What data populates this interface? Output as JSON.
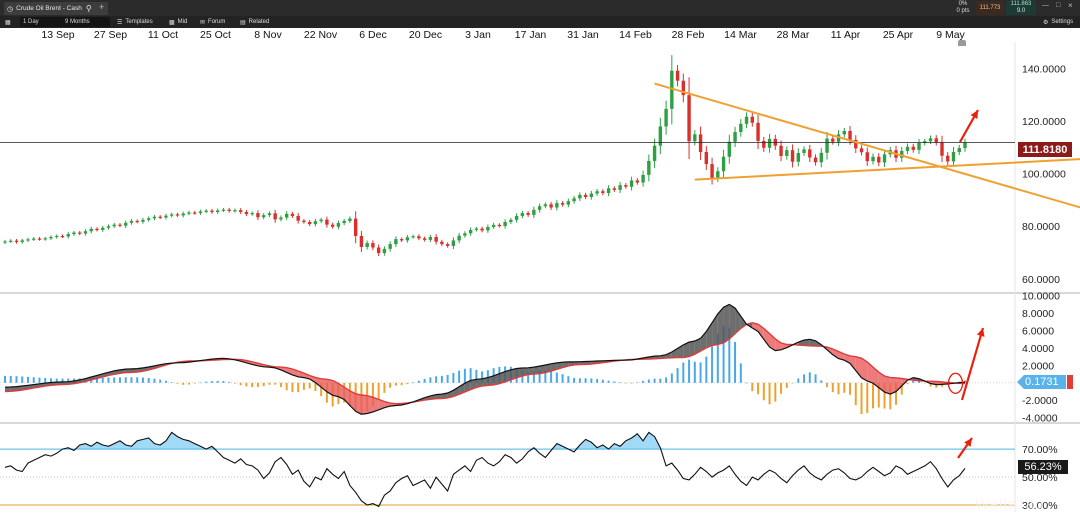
{
  "window": {
    "instrument": "Crude Oil Brent - Cash",
    "sell_price": "111.773",
    "buy_price": "111.863",
    "spread": "9.0",
    "change_pct": "0%",
    "change_pts": "0 pts"
  },
  "toolbar": {
    "interval": "1 Day",
    "range": "9 Months",
    "templates": "Templates",
    "mid": "Mid",
    "forum": "Forum",
    "related": "Related",
    "settings": "Settings"
  },
  "date_axis": [
    "13 Sep",
    "27 Sep",
    "11 Oct",
    "25 Oct",
    "8 Nov",
    "22 Nov",
    "6 Dec",
    "20 Dec",
    "3 Jan",
    "17 Jan",
    "31 Jan",
    "14 Feb",
    "28 Feb",
    "14 Mar",
    "28 Mar",
    "11 Apr",
    "25 Apr",
    "9 May"
  ],
  "price_labels": {
    "current_price": "111.8180",
    "macd_value": "0.1731",
    "rsi_value": "56.23%"
  },
  "watermark": "Wallazau",
  "colors": {
    "up": "#2ea043",
    "down": "#d9302c",
    "signal": "#e03c3c",
    "trendline": "#f0a030",
    "rsi_fill": "#8fd3f5",
    "hist_pos": "#4aa8e8",
    "hist_neg": "#f0a030",
    "annotation": "#e8210f"
  },
  "chart_data": [
    {
      "type": "candlestick",
      "name": "Price",
      "ylim": [
        55,
        150
      ],
      "yticks": [
        60,
        80,
        100,
        120,
        140
      ],
      "ytick_labels": [
        "60.0000",
        "80.0000",
        "100.0000",
        "120.0000",
        "140.0000"
      ],
      "current_price": 111.818,
      "close": [
        74.2,
        74.5,
        74.0,
        74.6,
        75.0,
        75.3,
        75.1,
        75.4,
        75.9,
        76.3,
        76.1,
        77.0,
        77.6,
        77.2,
        78.1,
        79.0,
        78.6,
        79.4,
        80.0,
        80.6,
        80.2,
        81.3,
        82.0,
        81.7,
        82.4,
        83.0,
        83.6,
        83.3,
        84.0,
        84.5,
        84.1,
        84.8,
        85.2,
        85.0,
        85.6,
        85.9,
        85.4,
        86.0,
        86.3,
        85.8,
        86.1,
        85.4,
        84.6,
        85.0,
        83.4,
        84.2,
        84.9,
        82.6,
        83.3,
        84.7,
        83.9,
        82.1,
        81.6,
        80.8,
        81.9,
        82.5,
        80.6,
        79.8,
        81.2,
        82.0,
        82.9,
        76.3,
        72.1,
        73.6,
        71.9,
        69.8,
        71.4,
        73.2,
        75.1,
        74.6,
        75.8,
        76.2,
        75.4,
        74.8,
        75.9,
        74.1,
        73.2,
        72.5,
        74.6,
        76.4,
        77.3,
        78.6,
        79.1,
        78.4,
        79.7,
        80.5,
        80.1,
        81.6,
        82.4,
        83.9,
        85.0,
        84.3,
        86.2,
        87.6,
        88.3,
        87.1,
        88.8,
        88.2,
        89.5,
        90.6,
        91.9,
        91.1,
        92.4,
        93.3,
        92.6,
        94.4,
        93.8,
        95.6,
        95.0,
        97.4,
        96.6,
        99.5,
        104.8,
        110.6,
        117.9,
        124.6,
        139.1,
        135.3,
        129.8,
        112.3,
        114.9,
        108.2,
        103.6,
        98.3,
        100.9,
        106.4,
        112.1,
        115.8,
        118.9,
        121.6,
        119.3,
        112.4,
        109.8,
        113.2,
        110.6,
        106.7,
        108.9,
        104.5,
        107.8,
        109.2,
        106.1,
        104.3,
        107.9,
        113.3,
        112.1,
        114.9,
        116.2,
        112.8,
        109.6,
        108.1,
        104.7,
        106.4,
        104.2,
        107.3,
        108.9,
        106.0,
        108.6,
        110.2,
        109.0,
        111.6,
        112.3,
        113.4,
        111.9,
        106.8,
        104.6,
        108.2,
        109.7,
        111.818
      ],
      "trendlines": [
        {
          "points": [
            [
              113,
              134.2
            ],
            [
              169,
              98.6
            ]
          ]
        },
        {
          "points": [
            [
              120,
              97.7
            ],
            [
              169,
              103.4
            ]
          ]
        }
      ]
    },
    {
      "type": "macd",
      "name": "MACD",
      "ylim": [
        -4.5,
        10.2
      ],
      "yticks": [
        -4,
        -2,
        0,
        2,
        4,
        6,
        8,
        10
      ],
      "ytick_labels": [
        "-4.0000",
        "-2.0000",
        "",
        "2.0000",
        "4.0000",
        "6.0000",
        "8.0000",
        "10.0000"
      ],
      "current_value": 0.1731,
      "macd_anchors": [
        [
          0,
          -0.5
        ],
        [
          10,
          0.1
        ],
        [
          22,
          1.6
        ],
        [
          30,
          2.3
        ],
        [
          38,
          2.8
        ],
        [
          46,
          1.8
        ],
        [
          52,
          0.6
        ],
        [
          58,
          -1.6
        ],
        [
          62,
          -3.6
        ],
        [
          68,
          -2.6
        ],
        [
          76,
          -1.3
        ],
        [
          82,
          0.4
        ],
        [
          90,
          1.7
        ],
        [
          98,
          2.4
        ],
        [
          108,
          2.6
        ],
        [
          114,
          3.1
        ],
        [
          120,
          4.8
        ],
        [
          126,
          9.0
        ],
        [
          130,
          6.3
        ],
        [
          134,
          3.7
        ],
        [
          140,
          5.0
        ],
        [
          146,
          2.6
        ],
        [
          150,
          0.2
        ],
        [
          154,
          -1.3
        ],
        [
          158,
          0.6
        ],
        [
          162,
          -0.2
        ],
        [
          168,
          0.1
        ],
        [
          172,
          1.2
        ],
        [
          176,
          0.17
        ]
      ],
      "signal_anchors": [
        [
          0,
          -1.0
        ],
        [
          10,
          -0.2
        ],
        [
          22,
          1.2
        ],
        [
          32,
          2.5
        ],
        [
          40,
          2.7
        ],
        [
          48,
          1.8
        ],
        [
          56,
          0.4
        ],
        [
          62,
          -1.4
        ],
        [
          68,
          -2.4
        ],
        [
          76,
          -1.8
        ],
        [
          84,
          -0.3
        ],
        [
          92,
          1.0
        ],
        [
          100,
          2.1
        ],
        [
          110,
          2.7
        ],
        [
          118,
          2.9
        ],
        [
          124,
          4.4
        ],
        [
          130,
          6.9
        ],
        [
          136,
          4.4
        ],
        [
          142,
          4.2
        ],
        [
          148,
          3.0
        ],
        [
          154,
          0.6
        ],
        [
          160,
          0.2
        ],
        [
          168,
          -0.1
        ],
        [
          176,
          0.3
        ]
      ]
    },
    {
      "type": "line",
      "name": "RSI",
      "ylim": [
        25,
        88
      ],
      "yticks": [
        30,
        50,
        70
      ],
      "ytick_labels": [
        "30.00%",
        "50.00%",
        "70.00%"
      ],
      "overbought": 70,
      "oversold": 30,
      "current_value": 56.23,
      "rsi": [
        57,
        58,
        55,
        54,
        60,
        62,
        64,
        66,
        65,
        67,
        70,
        71,
        69,
        73,
        74,
        72,
        75,
        73,
        72,
        74,
        76,
        73,
        72,
        76,
        77,
        78,
        74,
        73,
        76,
        82,
        79,
        77,
        76,
        74,
        72,
        70,
        72,
        68,
        64,
        62,
        60,
        63,
        59,
        58,
        55,
        49,
        53,
        61,
        64,
        59,
        52,
        55,
        47,
        43,
        50,
        48,
        56,
        52,
        49,
        54,
        44,
        39,
        33,
        30,
        31,
        29,
        37,
        40,
        46,
        49,
        51,
        44,
        46,
        48,
        42,
        50,
        45,
        40,
        52,
        55,
        58,
        54,
        62,
        64,
        60,
        58,
        61,
        66,
        64,
        60,
        63,
        68,
        71,
        67,
        64,
        69,
        74,
        72,
        70,
        68,
        73,
        77,
        75,
        71,
        73,
        70,
        74,
        72,
        76,
        78,
        81,
        76,
        82,
        79,
        71,
        58,
        60,
        55,
        49,
        48,
        52,
        57,
        54,
        50,
        53,
        55,
        58,
        52,
        47,
        44,
        50,
        48,
        52,
        55,
        53,
        49,
        46,
        51,
        55,
        58,
        53,
        50,
        48,
        52,
        55,
        56,
        53,
        49,
        48,
        50,
        54,
        57,
        54,
        51,
        53,
        58,
        56,
        52,
        54,
        56,
        58,
        61,
        56,
        49,
        43,
        48,
        51,
        56.23
      ]
    }
  ]
}
